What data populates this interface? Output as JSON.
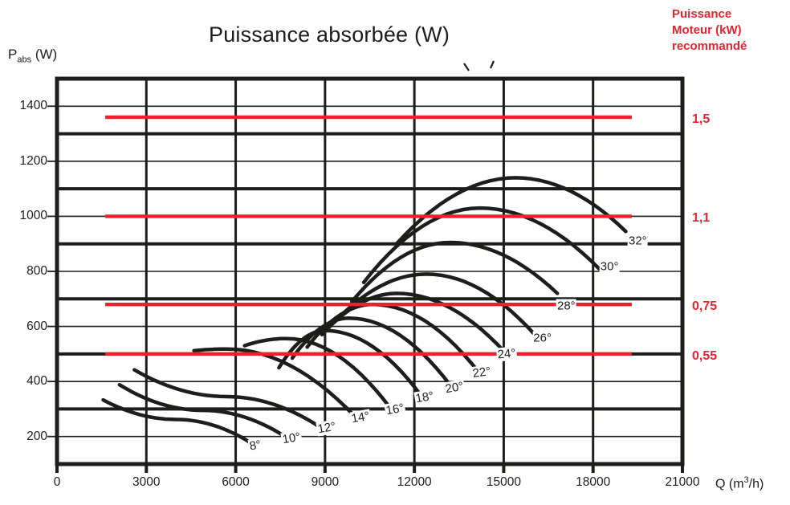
{
  "title": "Puissance absorbée (W)",
  "p_abs_label": {
    "base": "P",
    "sub": "abs",
    "unit": " (W)"
  },
  "q_label": {
    "prefix": "Q (m",
    "exp": "3",
    "suffix": "/h)"
  },
  "note": {
    "lines": [
      "Puissance",
      "Moteur (kW)",
      "recommandé"
    ],
    "color": "#e8232e"
  },
  "colors": {
    "curve_black": "#1d1d1b",
    "motor_red": "#e8232e",
    "background": "#ffffff"
  },
  "chart_data": {
    "type": "line",
    "title": "Puissance absorbée (W)",
    "xlabel": "Q (m³/h)",
    "ylabel": "Pabs (W)",
    "xlim": [
      0,
      21000
    ],
    "ylim": [
      100,
      1500
    ],
    "x_ticks": [
      0,
      3000,
      6000,
      9000,
      12000,
      15000,
      18000,
      21000
    ],
    "y_ticks": [
      200,
      400,
      600,
      800,
      1000,
      1200,
      1400
    ],
    "y_grid_major": [
      300,
      500,
      700,
      900,
      1100,
      1300
    ],
    "grid": "on",
    "legend_position": "none",
    "series_note": "each series = blade pitch angle curve, points are [Q m3/h, Pabs W] at start / peak / end",
    "series": [
      {
        "name": "8°",
        "points": [
          [
            1550,
            333
          ],
          [
            4000,
            262
          ],
          [
            6480,
            179
          ]
        ],
        "label_pos": [
          6660,
          167
        ],
        "label_rot": -10
      },
      {
        "name": "10°",
        "points": [
          [
            2100,
            388
          ],
          [
            4900,
            295
          ],
          [
            7700,
            197
          ]
        ],
        "label_pos": [
          7870,
          193
        ],
        "label_rot": -10
      },
      {
        "name": "12°",
        "points": [
          [
            2600,
            442
          ],
          [
            5700,
            345
          ],
          [
            8850,
            233
          ]
        ],
        "label_pos": [
          9060,
          231
        ],
        "label_rot": -10
      },
      {
        "name": "14°",
        "points": [
          [
            4600,
            512
          ],
          [
            5700,
            518
          ],
          [
            10000,
            273
          ]
        ],
        "label_pos": [
          10180,
          269
        ],
        "label_rot": -10
      },
      {
        "name": "16°",
        "points": [
          [
            6300,
            530
          ],
          [
            7700,
            556
          ],
          [
            11200,
            302
          ]
        ],
        "label_pos": [
          11350,
          298
        ],
        "label_rot": -10
      },
      {
        "name": "18°",
        "points": [
          [
            7450,
            450
          ],
          [
            9000,
            585
          ],
          [
            12250,
            345
          ]
        ],
        "label_pos": [
          12350,
          342
        ],
        "label_rot": -10
      },
      {
        "name": "20°",
        "points": [
          [
            7900,
            485
          ],
          [
            9800,
            630
          ],
          [
            13250,
            380
          ]
        ],
        "label_pos": [
          13350,
          378
        ],
        "label_rot": -10
      },
      {
        "name": "22°",
        "points": [
          [
            8400,
            525
          ],
          [
            10600,
            680
          ],
          [
            14150,
            435
          ]
        ],
        "label_pos": [
          14250,
          432
        ],
        "label_rot": -8
      },
      {
        "name": "24°",
        "points": [
          [
            8900,
            570
          ],
          [
            11400,
            720
          ],
          [
            15050,
            505
          ]
        ],
        "label_pos": [
          15100,
          500
        ],
        "label_rot": -5
      },
      {
        "name": "26°",
        "points": [
          [
            9400,
            625
          ],
          [
            12400,
            790
          ],
          [
            16000,
            575
          ]
        ],
        "label_pos": [
          16300,
          557
        ],
        "label_rot": 0
      },
      {
        "name": "28°",
        "points": [
          [
            9900,
            690
          ],
          [
            13200,
            905
          ],
          [
            16800,
            720
          ]
        ],
        "label_pos": [
          17100,
          675
        ],
        "label_rot": 0
      },
      {
        "name": "30°",
        "points": [
          [
            10300,
            760
          ],
          [
            14200,
            1030
          ],
          [
            18200,
            810
          ]
        ],
        "label_pos": [
          18550,
          818
        ],
        "label_rot": 0
      },
      {
        "name": "32°",
        "points": [
          [
            11400,
            900
          ],
          [
            15400,
            1140
          ],
          [
            19100,
            945
          ]
        ],
        "label_pos": [
          19500,
          912
        ],
        "label_rot": 0
      }
    ],
    "motor_lines_note": "red horizontal lines = recommended motor power (kW) at given absorbed power level (W)",
    "motor_line_span": [
      1620,
      19300
    ],
    "motor_lines": [
      {
        "label": "1,5",
        "kw": 1.5,
        "watts": 1360
      },
      {
        "label": "1,1",
        "kw": 1.1,
        "watts": 1000
      },
      {
        "label": "0,75",
        "kw": 0.75,
        "watts": 680
      },
      {
        "label": "0,55",
        "kw": 0.55,
        "watts": 500
      }
    ]
  }
}
